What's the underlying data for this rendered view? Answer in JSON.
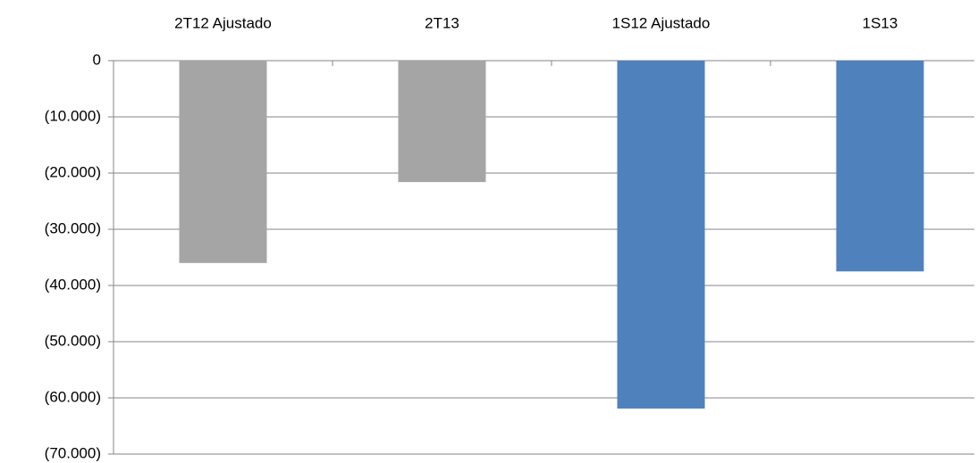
{
  "chart_data": {
    "type": "bar",
    "categories": [
      "2T12 Ajustado",
      "2T13",
      "1S12 Ajustado",
      "1S13"
    ],
    "values": [
      -36000,
      -21600,
      -61900,
      -37500
    ],
    "colors": [
      "#a5a5a5",
      "#a5a5a5",
      "#4f81bd",
      "#4f81bd"
    ],
    "ylim": [
      -70000,
      0
    ],
    "yticks": [
      0,
      {
        "value": -10000,
        "label": "(10.000)"
      },
      {
        "value": -20000,
        "label": "(20.000)"
      },
      {
        "value": -30000,
        "label": "(30.000)"
      },
      {
        "value": -40000,
        "label": "(40.000)"
      },
      {
        "value": -50000,
        "label": "(50.000)"
      },
      {
        "value": -60000,
        "label": "(60.000)"
      },
      {
        "value": -70000,
        "label": "(70.000)"
      }
    ],
    "grid": true
  }
}
